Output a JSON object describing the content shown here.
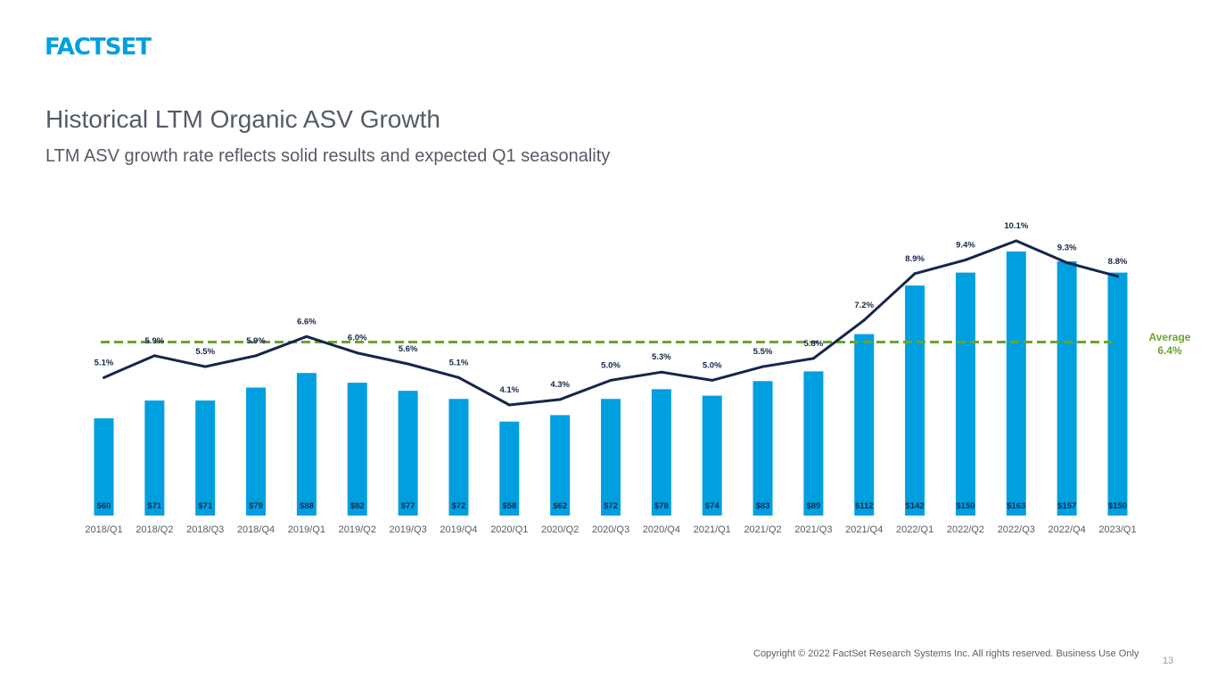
{
  "brand": {
    "logo_text": "FACTSET",
    "accent": "#009fe0"
  },
  "page": {
    "title": "Historical LTM Organic ASV Growth",
    "subtitle": "LTM ASV growth rate reflects solid results and expected Q1 seasonality",
    "copyright": "Copyright © 2022 FactSet Research Systems Inc. All rights reserved. Business Use Only",
    "page_number": "13"
  },
  "chart_data": {
    "type": "bar",
    "title": "",
    "xlabel": "",
    "ylabel": "",
    "categories": [
      "2018/Q1",
      "2018/Q2",
      "2018/Q3",
      "2018/Q4",
      "2019/Q1",
      "2019/Q2",
      "2019/Q3",
      "2019/Q4",
      "2020/Q1",
      "2020/Q2",
      "2020/Q3",
      "2020/Q4",
      "2021/Q1",
      "2021/Q2",
      "2021/Q3",
      "2021/Q4",
      "2022/Q1",
      "2022/Q2",
      "2022/Q3",
      "2022/Q4",
      "2023/Q1"
    ],
    "bar_labels": [
      "$60",
      "$71",
      "$71",
      "$79",
      "$88",
      "$82",
      "$77",
      "$72",
      "$58",
      "$62",
      "$72",
      "$78",
      "$74",
      "$83",
      "$89",
      "$112",
      "$142",
      "$150",
      "$163",
      "$157",
      "$150"
    ],
    "bar_values": [
      60,
      71,
      71,
      79,
      88,
      82,
      77,
      72,
      58,
      62,
      72,
      78,
      74,
      83,
      89,
      112,
      142,
      150,
      163,
      157,
      150
    ],
    "line_values": [
      5.1,
      5.9,
      5.5,
      5.9,
      6.6,
      6.0,
      5.6,
      5.1,
      4.1,
      4.3,
      5.0,
      5.3,
      5.0,
      5.5,
      5.8,
      7.2,
      8.9,
      9.4,
      10.1,
      9.3,
      8.8
    ],
    "line_labels": [
      "5.1%",
      "5.9%",
      "5.5%",
      "5.9%",
      "6.6%",
      "6.0%",
      "5.6%",
      "5.1%",
      "4.1%",
      "4.3%",
      "5.0%",
      "5.3%",
      "5.0%",
      "5.5%",
      "5.8%",
      "7.2%",
      "8.9%",
      "9.4%",
      "10.1%",
      "9.3%",
      "8.8%"
    ],
    "average": {
      "value": 6.4,
      "label": "Average",
      "value_label": "6.4%"
    },
    "colors": {
      "bar": "#009fe0",
      "line": "#14264b",
      "average": "#6ba52a",
      "bar_text": "#1a2b4c",
      "axis_text": "#555b66"
    },
    "grid": false,
    "legend": "none"
  }
}
